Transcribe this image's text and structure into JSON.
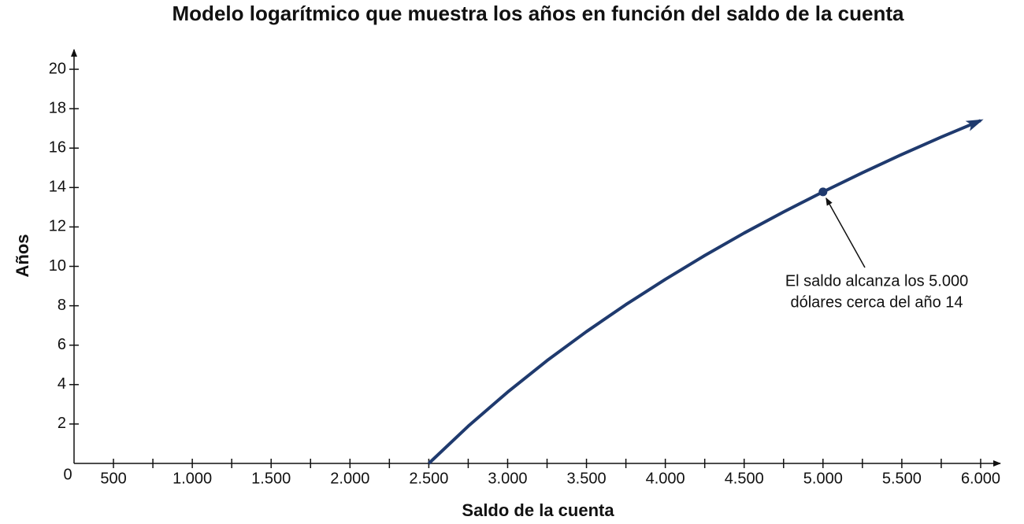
{
  "chart_data": {
    "type": "line",
    "title": "Modelo logarítmico que muestra los años en función del saldo de la cuenta",
    "x_label": "Saldo de la cuenta",
    "y_label": "Años",
    "origin_label": "0",
    "x": [
      2500,
      2750,
      3000,
      3250,
      3500,
      3750,
      4000,
      4250,
      4500,
      4750,
      5000,
      5250,
      5500,
      5750,
      6000
    ],
    "series": [
      {
        "color": "#1f3a6e",
        "values": [
          0,
          1.89,
          3.62,
          5.22,
          6.69,
          8.06,
          9.34,
          10.55,
          11.69,
          12.76,
          13.78,
          14.75,
          15.68,
          16.56,
          17.4
        ]
      }
    ],
    "annotation": {
      "x": 5000,
      "y": 13.78,
      "lines": [
        "El saldo alcanza los 5.000",
        "dólares cerca del año 14"
      ]
    },
    "xlim": [
      250,
      6125
    ],
    "ylim": [
      0,
      21
    ],
    "xticks": [
      500,
      {
        "value": 1000,
        "label": "1.000"
      },
      {
        "value": 1500,
        "label": "1.500"
      },
      {
        "value": 2000,
        "label": "2.000"
      },
      {
        "value": 2500,
        "label": "2.500"
      },
      {
        "value": 3000,
        "label": "3.000"
      },
      {
        "value": 3500,
        "label": "3.500"
      },
      {
        "value": 4000,
        "label": "4.000"
      },
      {
        "value": 4500,
        "label": "4.500"
      },
      {
        "value": 5000,
        "label": "5.000"
      },
      {
        "value": 5500,
        "label": "5.500"
      },
      {
        "value": 6000,
        "label": "6.000"
      }
    ],
    "xminorticks": [
      750,
      1250,
      1750,
      2250,
      2750,
      3250,
      3750,
      4250,
      4750,
      5250,
      5750
    ],
    "yticks": [
      2,
      4,
      6,
      8,
      10,
      12,
      14,
      16,
      18,
      20
    ]
  }
}
